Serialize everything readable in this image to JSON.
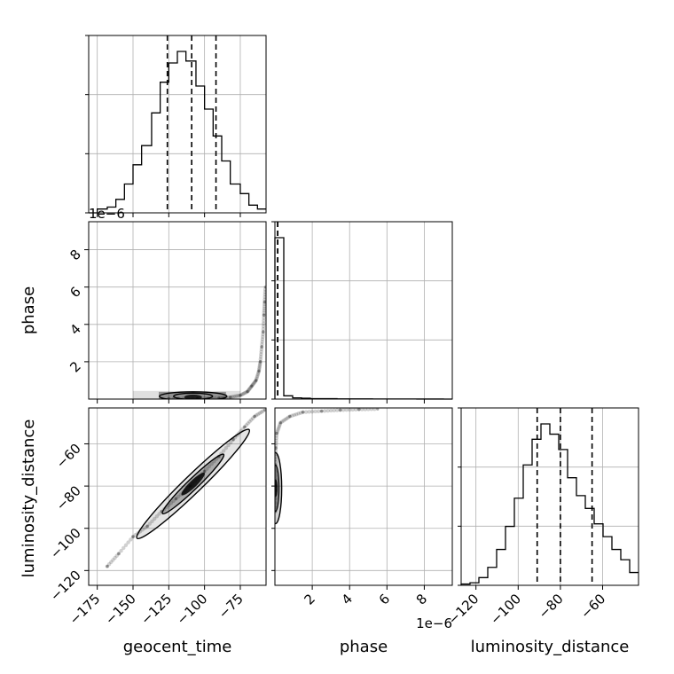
{
  "chart_data": {
    "type": "corner",
    "parameters": [
      "geocent_time",
      "phase",
      "luminosity_distance"
    ],
    "axis_labels": {
      "geocent_time": "geocent_time",
      "phase": "phase",
      "luminosity_distance": "luminosity_distance"
    },
    "ranges": {
      "geocent_time": [
        -181,
        -57
      ],
      "phase": [
        0,
        9.5
      ],
      "luminosity_distance": [
        -127,
        -43
      ]
    },
    "ticks": {
      "geocent_time": {
        "values": [
          -175,
          -150,
          -125,
          -100,
          -75
        ],
        "labels": [
          "−175",
          "−150",
          "−125",
          "−100",
          "−75"
        ]
      },
      "phase": {
        "values": [
          2,
          4,
          6,
          8
        ],
        "labels": [
          "2",
          "4",
          "6",
          "8"
        ],
        "offset_text": "1e−6"
      },
      "luminosity_distance": {
        "values": [
          -120,
          -100,
          -80,
          -60
        ],
        "labels": [
          "−120",
          "−100",
          "−80",
          "−60"
        ]
      }
    },
    "grid": true,
    "quantiles": {
      "geocent_time": [
        -126,
        -109,
        -92
      ],
      "phase": [
        0.15,
        0.15,
        0.15
      ],
      "luminosity_distance": [
        -91,
        -80,
        -65
      ]
    },
    "histograms": {
      "geocent_time": {
        "bins": [
          -181,
          -175,
          -168,
          -162,
          -156,
          -150,
          -144,
          -137,
          -131,
          -125,
          -119,
          -113,
          -106,
          -100,
          -94,
          -88,
          -82,
          -75,
          -69,
          -63,
          -57
        ],
        "counts": [
          0,
          2,
          3,
          7,
          15,
          25,
          35,
          52,
          68,
          78,
          84,
          79,
          66,
          54,
          40,
          27,
          15,
          10,
          4,
          2
        ]
      },
      "phase": {
        "bins": [
          0,
          0.475,
          0.95,
          1.425,
          1.9,
          2.375,
          2.85,
          3.325,
          3.8,
          4.275,
          4.75,
          5.225,
          5.7,
          6.175,
          6.65,
          7.125,
          7.6,
          8.075,
          8.55,
          9.025,
          9.5
        ],
        "counts": [
          395,
          8,
          3,
          2,
          1,
          1,
          1,
          0.5,
          0.5,
          0.5,
          0.5,
          0.3,
          0.3,
          0.3,
          0.2,
          0.2,
          0.1,
          0.1,
          0.1,
          0
        ]
      },
      "luminosity_distance": {
        "bins": [
          -127,
          -122.8,
          -118.6,
          -114.4,
          -110.2,
          -106,
          -101.8,
          -97.6,
          -93.4,
          -89.2,
          -85,
          -80.8,
          -76.6,
          -72.4,
          -68.2,
          -64,
          -59.8,
          -55.6,
          -51.4,
          -47.2,
          -43
        ],
        "counts": [
          0.5,
          1,
          3,
          7,
          14,
          23,
          34,
          47,
          57,
          63,
          59,
          53,
          42,
          35,
          30,
          24,
          19,
          14,
          10,
          5
        ]
      }
    },
    "scatter_2d": {
      "phase_vs_geocent_time": [
        [
          -125,
          0.02
        ],
        [
          -105,
          0.03
        ],
        [
          -90,
          0.05
        ],
        [
          -82,
          0.1
        ],
        [
          -75,
          0.2
        ],
        [
          -70,
          0.4
        ],
        [
          -67,
          0.7
        ],
        [
          -64,
          1.0
        ],
        [
          -62,
          1.5
        ],
        [
          -61,
          2.0
        ],
        [
          -60,
          2.8
        ],
        [
          -59,
          3.6
        ],
        [
          -58.5,
          4.5
        ],
        [
          -58,
          5.2
        ],
        [
          -57.5,
          6.0
        ]
      ],
      "luminosity_distance_vs_geocent_time": [
        [
          -168,
          -118
        ],
        [
          -160,
          -112
        ],
        [
          -150,
          -104
        ],
        [
          -140,
          -99
        ],
        [
          -130,
          -92
        ],
        [
          -120,
          -86
        ],
        [
          -110,
          -80
        ],
        [
          -100,
          -73
        ],
        [
          -90,
          -66
        ],
        [
          -80,
          -58
        ],
        [
          -72,
          -52
        ],
        [
          -65,
          -47
        ],
        [
          -58,
          -44
        ]
      ],
      "luminosity_distance_vs_phase": [
        [
          0.02,
          -92
        ],
        [
          0.02,
          -80
        ],
        [
          0.03,
          -70
        ],
        [
          0.05,
          -62
        ],
        [
          0.1,
          -55
        ],
        [
          0.3,
          -50
        ],
        [
          0.8,
          -47
        ],
        [
          1.5,
          -45
        ],
        [
          2.5,
          -44.5
        ],
        [
          3.5,
          -44
        ],
        [
          4.5,
          -43.7
        ],
        [
          5.5,
          -43.5
        ]
      ]
    }
  }
}
